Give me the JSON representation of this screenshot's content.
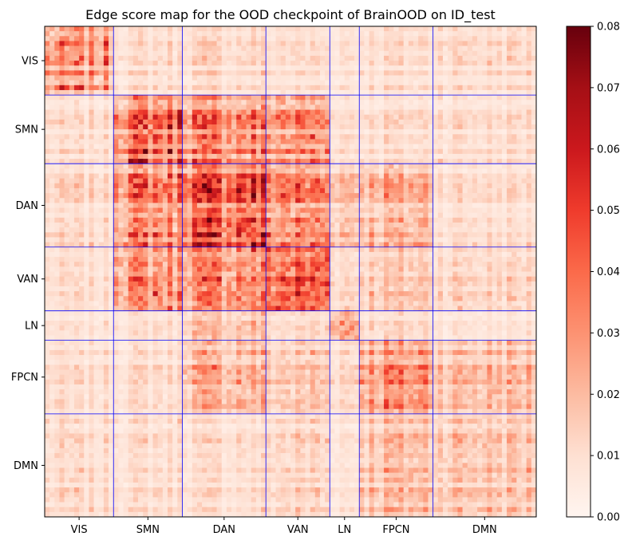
{
  "chart_data": {
    "type": "heatmap",
    "title": "Edge score map for the OOD checkpoint of BrainOOD on ID_test",
    "n_nodes": 100,
    "networks": [
      {
        "name": "VIS",
        "count": 14
      },
      {
        "name": "SMN",
        "count": 14
      },
      {
        "name": "DAN",
        "count": 17
      },
      {
        "name": "VAN",
        "count": 13
      },
      {
        "name": "LN",
        "count": 6
      },
      {
        "name": "FPCN",
        "count": 15
      },
      {
        "name": "DMN",
        "count": 21
      }
    ],
    "network_mean_scores": [
      [
        0.022,
        0.009,
        0.01,
        0.009,
        0.008,
        0.009,
        0.01
      ],
      [
        0.009,
        0.035,
        0.03,
        0.028,
        0.01,
        0.01,
        0.01
      ],
      [
        0.01,
        0.03,
        0.04,
        0.03,
        0.018,
        0.02,
        0.01
      ],
      [
        0.009,
        0.028,
        0.03,
        0.038,
        0.012,
        0.015,
        0.012
      ],
      [
        0.008,
        0.01,
        0.018,
        0.012,
        0.03,
        0.012,
        0.008
      ],
      [
        0.009,
        0.01,
        0.02,
        0.015,
        0.012,
        0.026,
        0.018
      ],
      [
        0.01,
        0.01,
        0.01,
        0.012,
        0.008,
        0.018,
        0.017
      ]
    ],
    "colorbar": {
      "min": 0.0,
      "max": 0.08,
      "ticks": [
        "0.00",
        "0.01",
        "0.02",
        "0.03",
        "0.04",
        "0.05",
        "0.06",
        "0.07",
        "0.08"
      ],
      "colormap": "Reds"
    },
    "divider_color": "#0000ff"
  }
}
